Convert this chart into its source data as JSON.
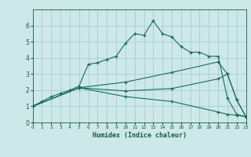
{
  "xlabel": "Humidex (Indice chaleur)",
  "bg_color": "#cce8e8",
  "grid_color": "#aacccc",
  "line_color": "#1a6b5a",
  "xlim": [
    0,
    23
  ],
  "ylim": [
    0,
    7
  ],
  "xticks": [
    0,
    1,
    2,
    3,
    4,
    5,
    6,
    7,
    8,
    9,
    10,
    11,
    12,
    13,
    14,
    15,
    16,
    17,
    18,
    19,
    20,
    21,
    22,
    23
  ],
  "yticks": [
    0,
    1,
    2,
    3,
    4,
    5,
    6
  ],
  "series": [
    [
      0,
      1,
      1,
      1.3,
      2,
      1.6,
      3,
      1.8,
      4,
      2.0,
      5,
      2.25,
      6,
      3.6,
      7,
      3.7,
      8,
      3.9,
      9,
      4.1,
      10,
      4.9,
      11,
      5.5,
      12,
      5.4,
      13,
      6.3,
      14,
      5.5,
      15,
      5.3,
      16,
      4.7,
      17,
      4.35,
      18,
      4.35,
      19,
      4.1,
      20,
      4.1,
      21,
      1.5,
      22,
      0.5,
      23,
      0.35
    ],
    [
      0,
      1,
      5,
      2.15,
      10,
      2.5,
      15,
      3.1,
      20,
      3.75,
      21,
      3.0,
      22,
      1.4,
      23,
      0.35
    ],
    [
      0,
      1,
      5,
      2.15,
      10,
      1.95,
      15,
      2.1,
      20,
      2.7,
      21,
      3.0,
      22,
      1.4,
      23,
      0.35
    ],
    [
      0,
      1,
      5,
      2.15,
      10,
      1.6,
      15,
      1.3,
      20,
      0.65,
      21,
      0.5,
      22,
      0.45,
      23,
      0.35
    ]
  ]
}
